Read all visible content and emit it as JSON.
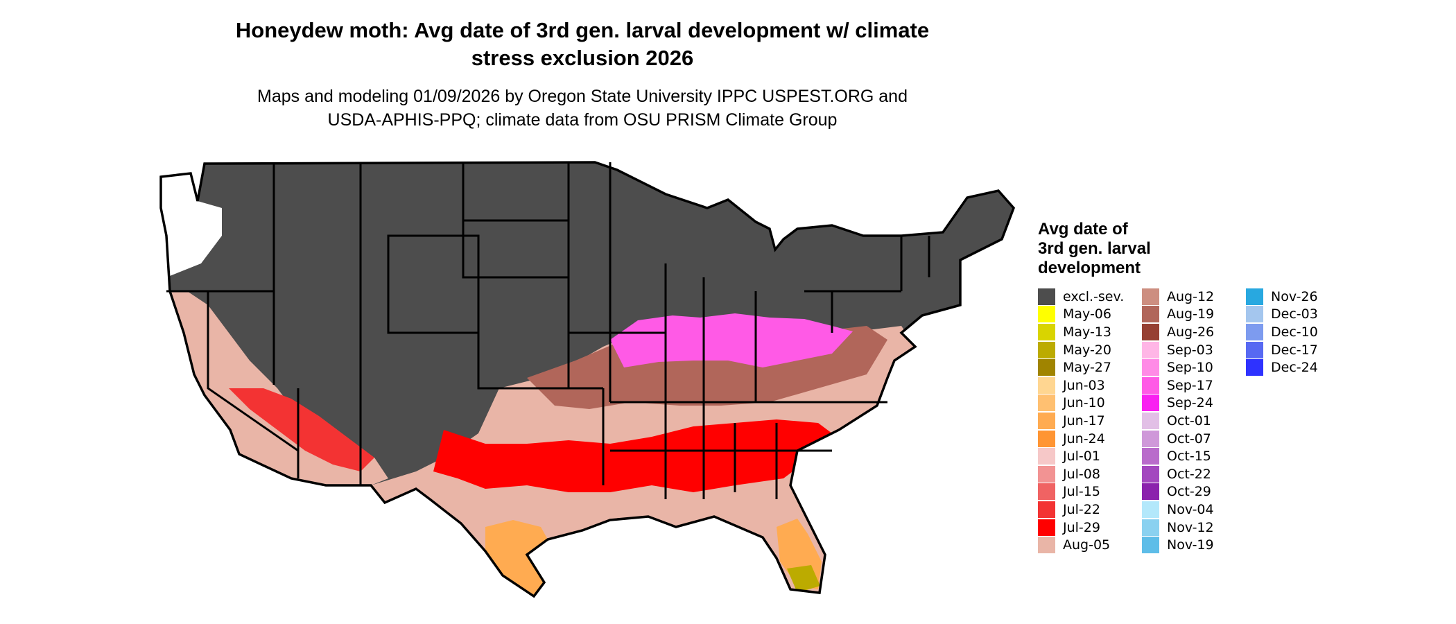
{
  "title_line1": "Honeydew moth: Avg date of 3rd gen. larval development w/ climate",
  "title_line2": "stress exclusion 2026",
  "subtitle_line1": "Maps and modeling 01/09/2026 by Oregon State University IPPC USPEST.ORG and",
  "subtitle_line2": "USDA-APHIS-PPQ; climate data from OSU PRISM Climate Group",
  "legend": {
    "title_line1": "Avg date of",
    "title_line2": "3rd gen. larval",
    "title_line3": "development",
    "columns": [
      [
        {
          "label": "excl.-sev.",
          "color": "#4d4d4d"
        },
        {
          "label": "May-06",
          "color": "#ffff00"
        },
        {
          "label": "May-13",
          "color": "#d9d400"
        },
        {
          "label": "May-20",
          "color": "#bcab00"
        },
        {
          "label": "May-27",
          "color": "#a08400"
        },
        {
          "label": "Jun-03",
          "color": "#ffd691"
        },
        {
          "label": "Jun-10",
          "color": "#ffc071"
        },
        {
          "label": "Jun-17",
          "color": "#ffab51"
        },
        {
          "label": "Jun-24",
          "color": "#ff9533"
        },
        {
          "label": "Jul-01",
          "color": "#f6c8c8"
        },
        {
          "label": "Jul-08",
          "color": "#f29393"
        },
        {
          "label": "Jul-15",
          "color": "#f06363"
        },
        {
          "label": "Jul-22",
          "color": "#f33333"
        },
        {
          "label": "Jul-29",
          "color": "#ff0000"
        },
        {
          "label": "Aug-05",
          "color": "#e9b5a7"
        }
      ],
      [
        {
          "label": "Aug-12",
          "color": "#cd8e80"
        },
        {
          "label": "Aug-19",
          "color": "#b1665a"
        },
        {
          "label": "Aug-26",
          "color": "#964033"
        },
        {
          "label": "Sep-03",
          "color": "#ffb6e6"
        },
        {
          "label": "Sep-10",
          "color": "#ff8be6"
        },
        {
          "label": "Sep-17",
          "color": "#ff5ae6"
        },
        {
          "label": "Sep-24",
          "color": "#f920f1"
        },
        {
          "label": "Oct-01",
          "color": "#e2bfe6"
        },
        {
          "label": "Oct-07",
          "color": "#cf98d9"
        },
        {
          "label": "Oct-15",
          "color": "#b96bcb"
        },
        {
          "label": "Oct-22",
          "color": "#a347bf"
        },
        {
          "label": "Oct-29",
          "color": "#8b22ad"
        },
        {
          "label": "Nov-04",
          "color": "#b3e8fb"
        },
        {
          "label": "Nov-12",
          "color": "#8ad1f0"
        },
        {
          "label": "Nov-19",
          "color": "#5ebde8"
        }
      ],
      [
        {
          "label": "Nov-26",
          "color": "#28a8e0"
        },
        {
          "label": "Dec-03",
          "color": "#a4c6ee"
        },
        {
          "label": "Dec-10",
          "color": "#7d9bef"
        },
        {
          "label": "Dec-17",
          "color": "#5769f2"
        },
        {
          "label": "Dec-24",
          "color": "#2e32ff"
        }
      ]
    ]
  }
}
